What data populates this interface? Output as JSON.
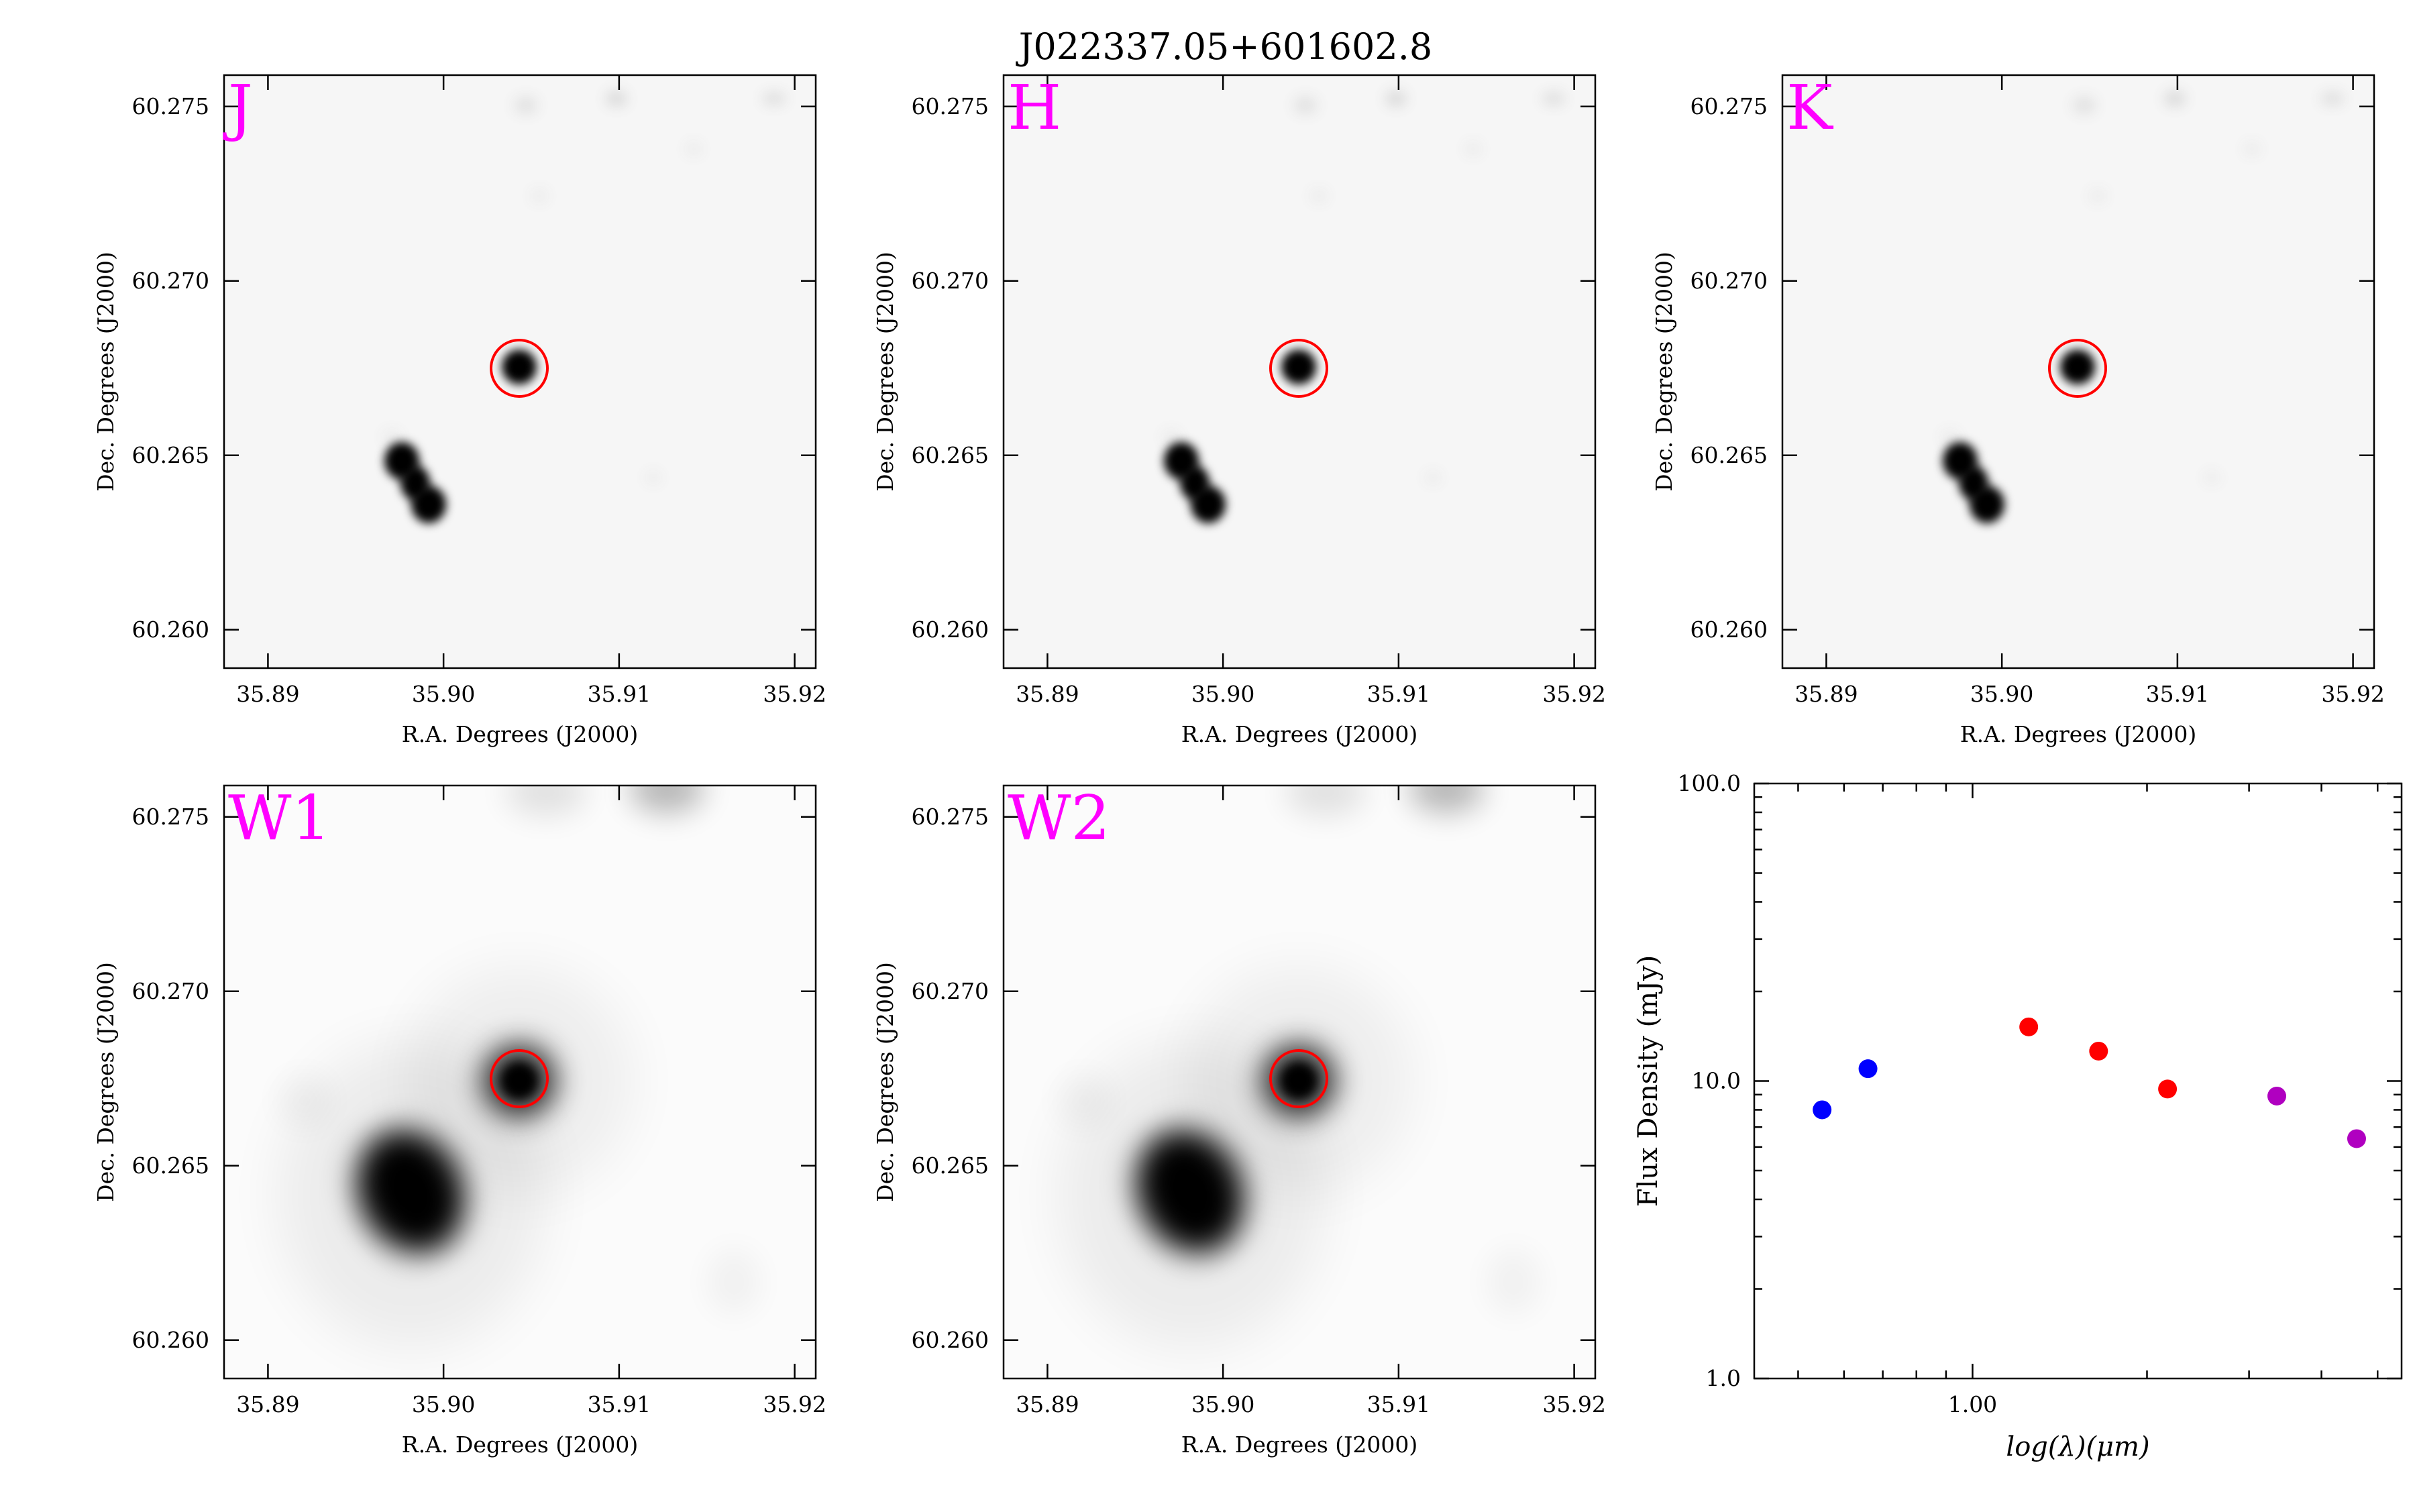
{
  "figure": {
    "title": "J022337.05+601602.8"
  },
  "cutouts": [
    {
      "id": "J",
      "band_label": "J",
      "xlabel": "R.A. Degrees (J2000)",
      "ylabel": "Dec. Degrees (J2000)",
      "x_ticks": [
        "35.89",
        "35.90",
        "35.91",
        "35.92"
      ],
      "y_ticks": [
        "60.275",
        "60.270",
        "60.265",
        "60.260"
      ]
    },
    {
      "id": "H",
      "band_label": "H",
      "xlabel": "R.A. Degrees (J2000)",
      "ylabel": "Dec. Degrees (J2000)",
      "x_ticks": [
        "35.89",
        "35.90",
        "35.91",
        "35.92"
      ],
      "y_ticks": [
        "60.275",
        "60.270",
        "60.265",
        "60.260"
      ]
    },
    {
      "id": "K",
      "band_label": "K",
      "xlabel": "R.A. Degrees (J2000)",
      "ylabel": "Dec. Degrees (J2000)",
      "x_ticks": [
        "35.89",
        "35.90",
        "35.91",
        "35.92"
      ],
      "y_ticks": [
        "60.275",
        "60.270",
        "60.265",
        "60.260"
      ]
    },
    {
      "id": "W1",
      "band_label": "W1",
      "xlabel": "R.A. Degrees (J2000)",
      "ylabel": "Dec. Degrees (J2000)",
      "x_ticks": [
        "35.89",
        "35.90",
        "35.91",
        "35.92"
      ],
      "y_ticks": [
        "60.275",
        "60.270",
        "60.265",
        "60.260"
      ]
    },
    {
      "id": "W2",
      "band_label": "W2",
      "xlabel": "R.A. Degrees (J2000)",
      "ylabel": "Dec. Degrees (J2000)",
      "x_ticks": [
        "35.89",
        "35.90",
        "35.91",
        "35.92"
      ],
      "y_ticks": [
        "60.275",
        "60.270",
        "60.265",
        "60.260"
      ]
    }
  ],
  "chart_data": {
    "type": "scatter",
    "xlabel": "log(λ)(μm)",
    "ylabel": "Flux Density (mJy)",
    "x_scale": "log",
    "y_scale": "log",
    "xlim": [
      0.42,
      5.5
    ],
    "ylim": [
      1.0,
      100.0
    ],
    "x_tick_labels": [
      "1.00"
    ],
    "y_tick_labels": [
      "100.0",
      "10.0",
      "1.0"
    ],
    "series": [
      {
        "color": "#0000ff",
        "x": [
          0.55,
          0.66
        ],
        "y": [
          8.0,
          11.0
        ]
      },
      {
        "color": "#ff0000",
        "x": [
          1.25,
          1.65,
          2.17
        ],
        "y": [
          15.2,
          12.6,
          9.4
        ]
      },
      {
        "color": "#b000c0",
        "x": [
          3.35,
          4.6
        ],
        "y": [
          8.9,
          6.4
        ]
      }
    ]
  },
  "colors": {
    "band_label": "#ff00ff",
    "target_circle": "#ff0000",
    "axis": "#000000"
  }
}
